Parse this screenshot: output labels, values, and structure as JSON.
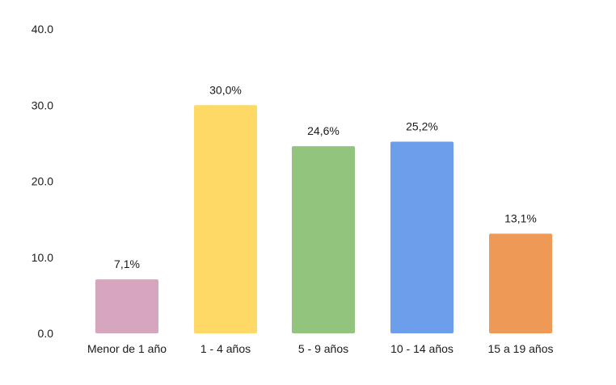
{
  "chart_data": {
    "type": "bar",
    "categories": [
      "Menor de 1 año",
      "1 - 4 años",
      "5 - 9 años",
      "10 - 14 años",
      "15 a 19 años"
    ],
    "values": [
      7.1,
      30.0,
      24.6,
      25.2,
      13.1
    ],
    "data_labels": [
      "7,1%",
      "30,0%",
      "24,6%",
      "25,2%",
      "13,1%"
    ],
    "bar_colors": [
      "#d5a6bd",
      "#ffd966",
      "#93c47d",
      "#6d9eeb",
      "#ee9a56"
    ],
    "ylim": [
      0,
      40
    ],
    "yticks": [
      0,
      10,
      20,
      30,
      40
    ],
    "ytick_labels": [
      "0.0",
      "10.0",
      "20.0",
      "30.0",
      "40.0"
    ],
    "grid": false,
    "legend": "none"
  }
}
